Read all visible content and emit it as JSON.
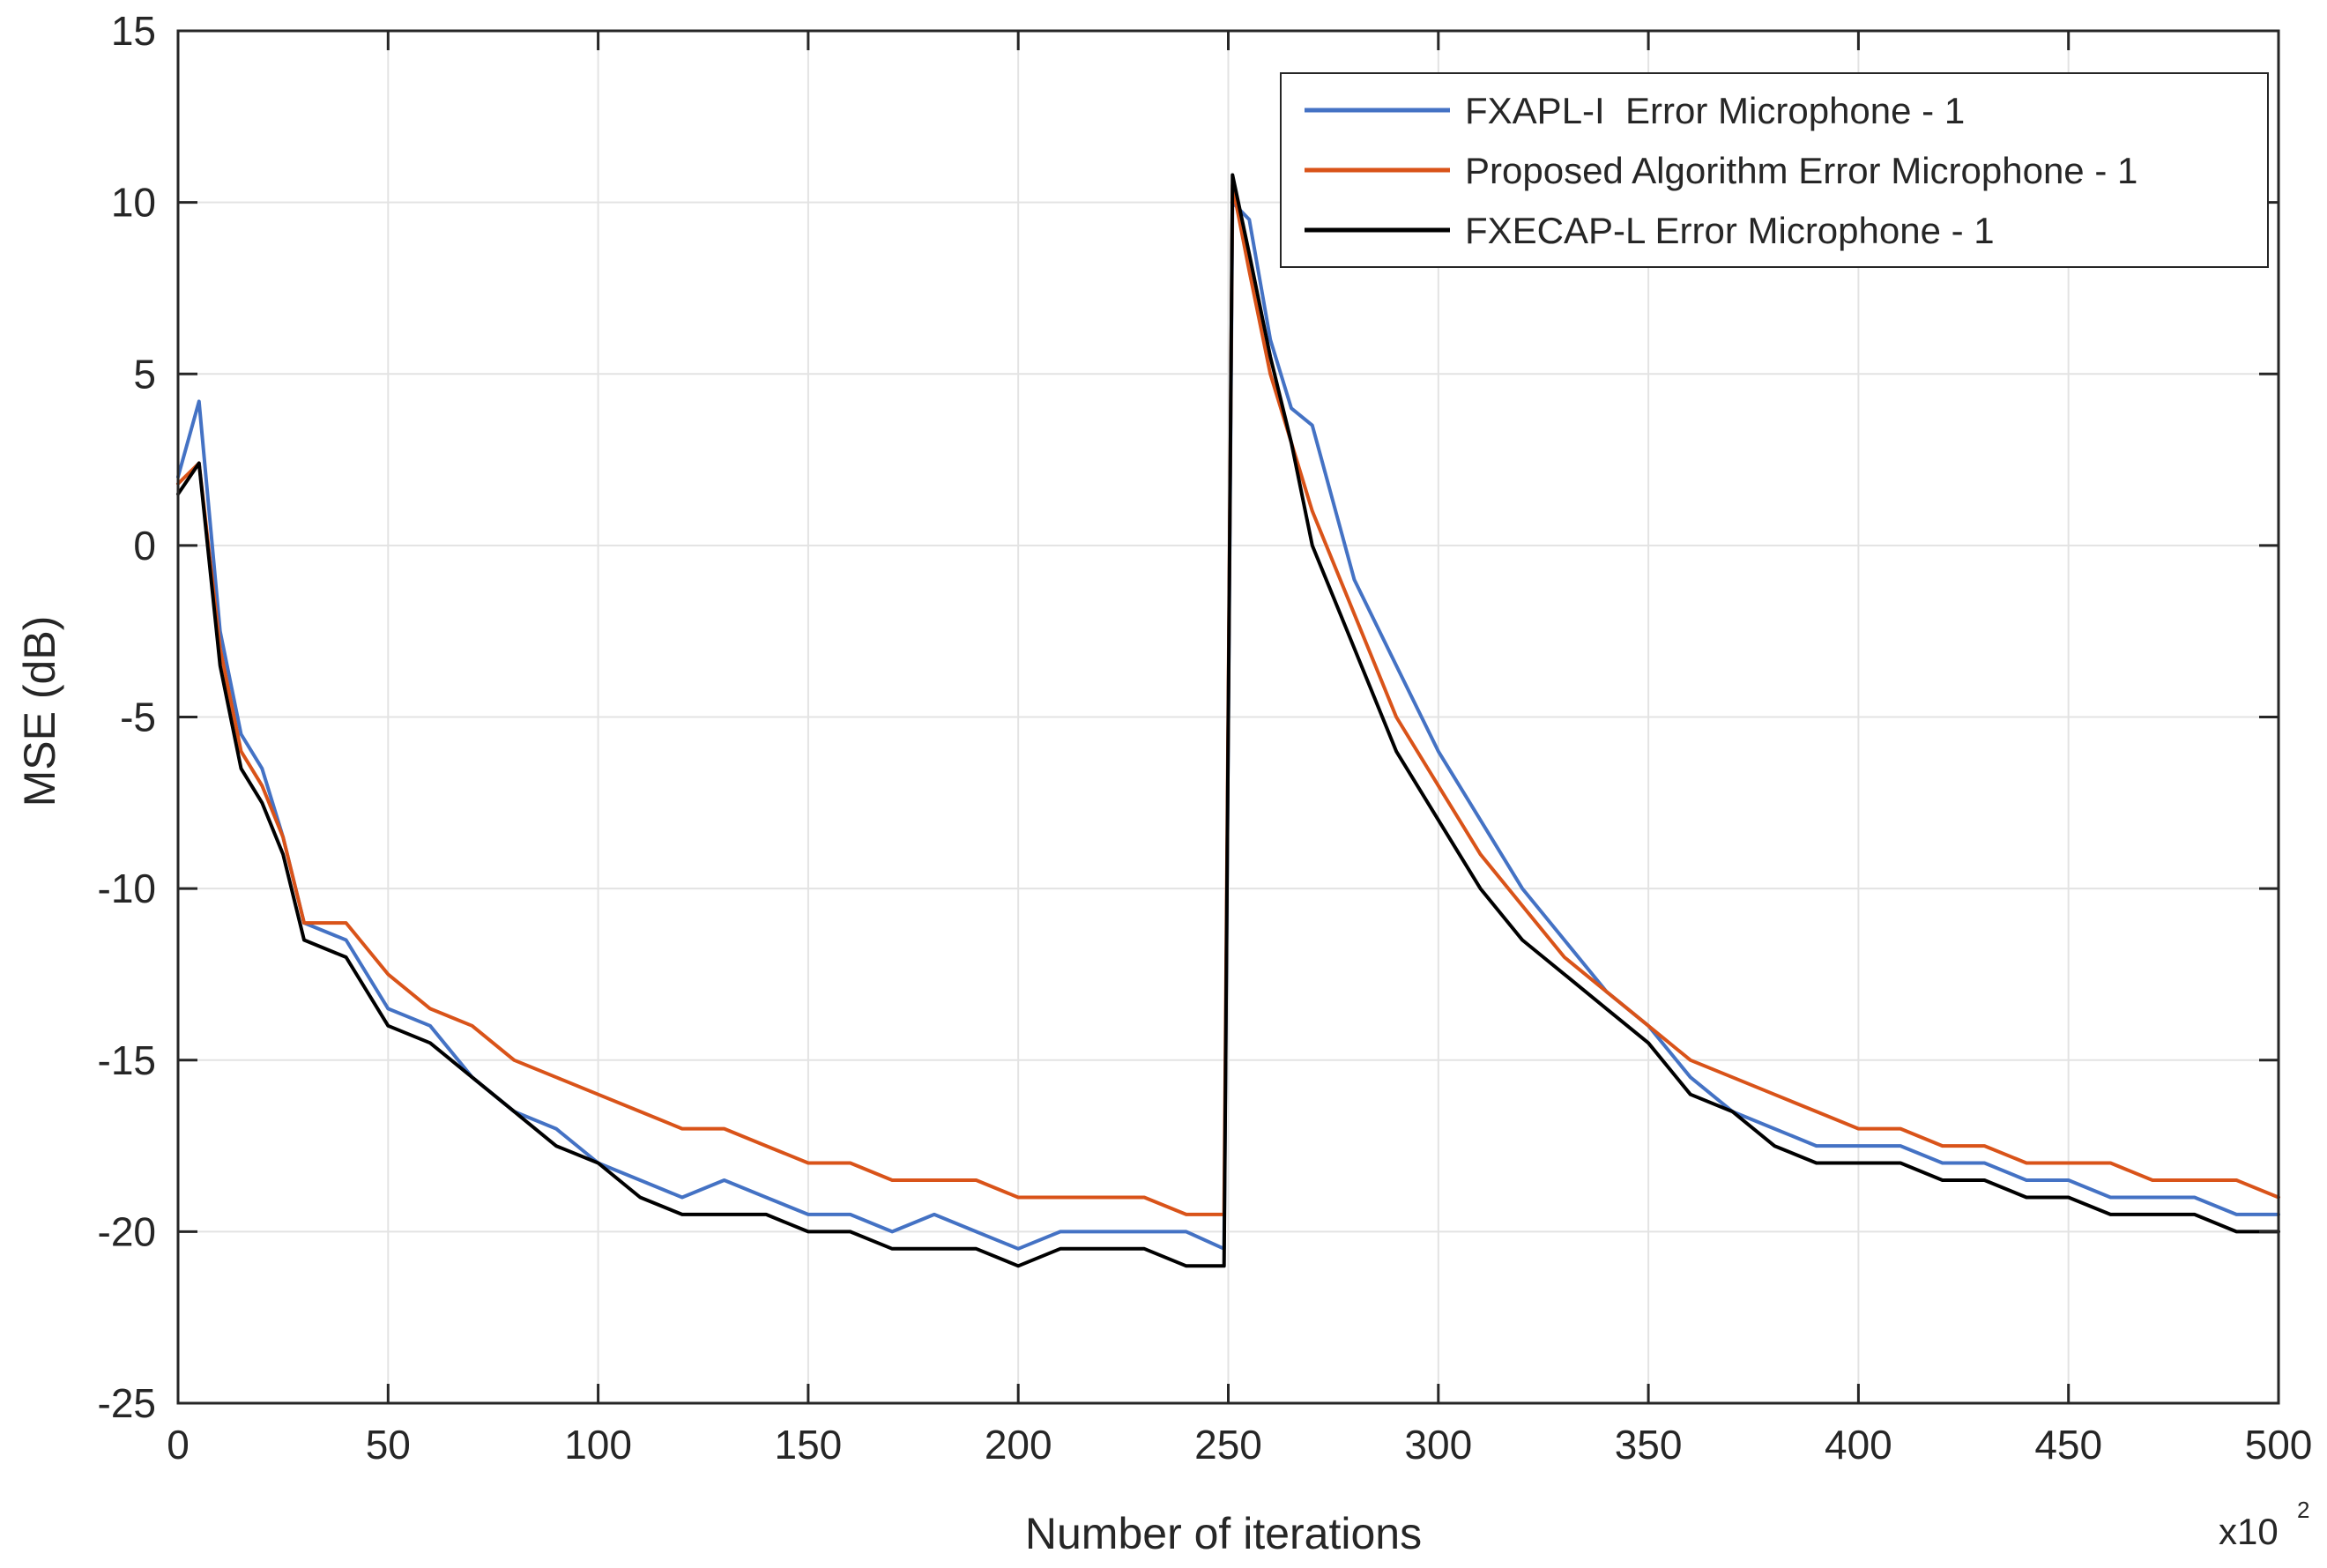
{
  "chart_data": {
    "type": "line",
    "title": "",
    "xlabel": "Number of iterations",
    "ylabel": "MSE (dB)",
    "x_multiplier_base": "x10",
    "x_multiplier_exp": "2",
    "xlim": [
      0,
      500
    ],
    "ylim": [
      -25,
      15
    ],
    "xticks": [
      0,
      50,
      100,
      150,
      200,
      250,
      300,
      350,
      400,
      450,
      500
    ],
    "yticks": [
      -25,
      -20,
      -15,
      -10,
      -5,
      0,
      5,
      10,
      15
    ],
    "grid": true,
    "legend_position": "top-right",
    "x": [
      0,
      5,
      10,
      15,
      20,
      25,
      30,
      40,
      50,
      60,
      70,
      80,
      90,
      100,
      110,
      120,
      130,
      140,
      150,
      160,
      170,
      180,
      190,
      200,
      210,
      220,
      230,
      240,
      249,
      251,
      255,
      260,
      265,
      270,
      280,
      290,
      300,
      310,
      320,
      330,
      340,
      350,
      360,
      370,
      380,
      390,
      400,
      410,
      420,
      430,
      440,
      450,
      460,
      470,
      480,
      490,
      500
    ],
    "series": [
      {
        "name": "FXAPL-I  Error Microphone - 1",
        "color": "#4472c4",
        "values": [
          2.0,
          4.2,
          -2.5,
          -5.5,
          -6.5,
          -8.5,
          -11.0,
          -11.5,
          -13.5,
          -14.0,
          -15.5,
          -16.5,
          -17.0,
          -18.0,
          -18.5,
          -19.0,
          -18.5,
          -19.0,
          -19.5,
          -19.5,
          -20.0,
          -19.5,
          -20.0,
          -20.5,
          -20.0,
          -20.0,
          -20.0,
          -20.0,
          -20.5,
          10.0,
          9.5,
          6.0,
          4.0,
          3.5,
          -1.0,
          -3.5,
          -6.0,
          -8.0,
          -10.0,
          -11.5,
          -13.0,
          -14.0,
          -15.5,
          -16.5,
          -17.0,
          -17.5,
          -17.5,
          -17.5,
          -18.0,
          -18.0,
          -18.5,
          -18.5,
          -19.0,
          -19.0,
          -19.0,
          -19.5,
          -19.5
        ]
      },
      {
        "name": "Proposed Algorithm Error Microphone - 1",
        "color": "#d95319",
        "values": [
          1.8,
          2.4,
          -3.0,
          -6.0,
          -7.0,
          -8.5,
          -11.0,
          -11.0,
          -12.5,
          -13.5,
          -14.0,
          -15.0,
          -15.5,
          -16.0,
          -16.5,
          -17.0,
          -17.0,
          -17.5,
          -18.0,
          -18.0,
          -18.5,
          -18.5,
          -18.5,
          -19.0,
          -19.0,
          -19.0,
          -19.0,
          -19.5,
          -19.5,
          10.5,
          8.0,
          5.0,
          3.0,
          1.0,
          -2.0,
          -5.0,
          -7.0,
          -9.0,
          -10.5,
          -12.0,
          -13.0,
          -14.0,
          -15.0,
          -15.5,
          -16.0,
          -16.5,
          -17.0,
          -17.0,
          -17.5,
          -17.5,
          -18.0,
          -18.0,
          -18.0,
          -18.5,
          -18.5,
          -18.5,
          -19.0
        ]
      },
      {
        "name": "FXECAP-L Error Microphone - 1",
        "color": "#000000",
        "values": [
          1.5,
          2.4,
          -3.5,
          -6.5,
          -7.5,
          -9.0,
          -11.5,
          -12.0,
          -14.0,
          -14.5,
          -15.5,
          -16.5,
          -17.5,
          -18.0,
          -19.0,
          -19.5,
          -19.5,
          -19.5,
          -20.0,
          -20.0,
          -20.5,
          -20.5,
          -20.5,
          -21.0,
          -20.5,
          -20.5,
          -20.5,
          -21.0,
          -21.0,
          10.8,
          8.5,
          5.5,
          3.0,
          0.0,
          -3.0,
          -6.0,
          -8.0,
          -10.0,
          -11.5,
          -12.5,
          -13.5,
          -14.5,
          -16.0,
          -16.5,
          -17.5,
          -18.0,
          -18.0,
          -18.0,
          -18.5,
          -18.5,
          -19.0,
          -19.0,
          -19.5,
          -19.5,
          -19.5,
          -20.0,
          -20.0
        ]
      }
    ]
  }
}
